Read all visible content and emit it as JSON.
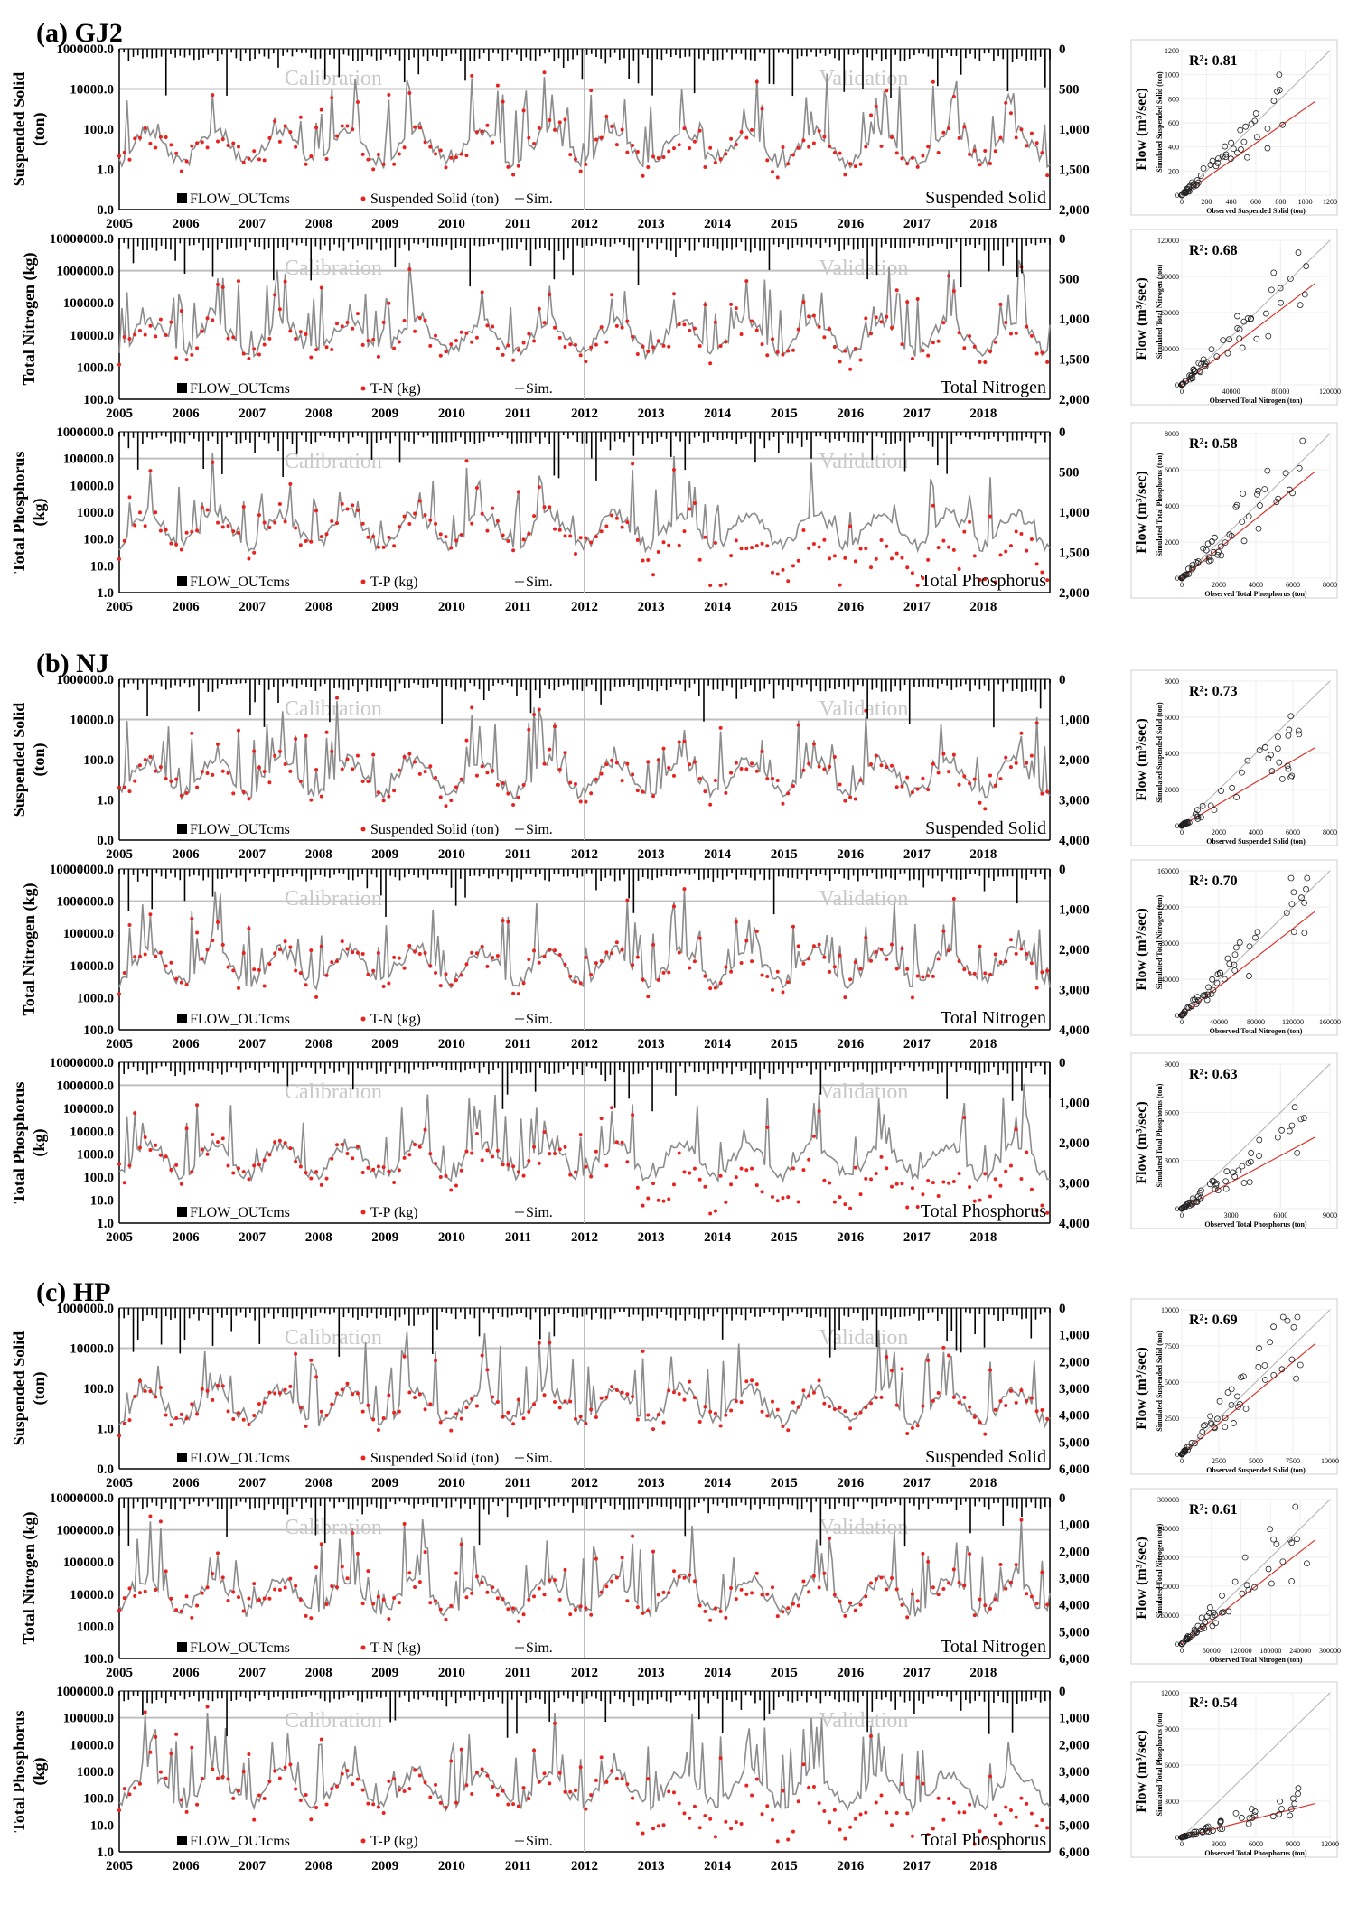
{
  "years": [
    "2005",
    "2006",
    "2007",
    "2008",
    "2009",
    "2010",
    "2011",
    "2012",
    "2013",
    "2014",
    "2015",
    "2016",
    "2017",
    "2018"
  ],
  "period_labels": {
    "calibration": "Calibration",
    "validation": "Validation"
  },
  "legend": {
    "flow": "FLOW_OUTcms",
    "sim": "Sim."
  },
  "scatter_ylabel": "Flow (m³/sec)",
  "colors": {
    "observed": "#e8231f",
    "simulated": "#8c8c8c",
    "flow": "#000000",
    "divider": "#bfbfbf",
    "regression": "#d9342b",
    "one_to_one": "#b0b0b0",
    "calibration_text": "#c8c8c8"
  },
  "panels": [
    {
      "title": "(a) GJ2",
      "rows": [
        {
          "ylabel": [
            "Suspended Solid",
            "(ton)"
          ],
          "legend_obs": "Suspended Solid (ton)",
          "name": "Suspended Solid",
          "yticks": [
            "1000000.0",
            "10000.0",
            "100.0",
            "1.0",
            "0.0"
          ],
          "flow_ticks": [
            "0",
            "500",
            "1,000",
            "1,500",
            "2,000"
          ],
          "scatter": {
            "r2": "R²: 0.81",
            "max": 1200,
            "xticks": [
              "0",
              "200",
              "400",
              "600",
              "800",
              "1000",
              "1200"
            ],
            "yticks": [
              "0",
              "200",
              "400",
              "600",
              "800",
              "1000",
              "1200"
            ],
            "xlabel": "Observed Suspended Solid (ton)",
            "ylabel": "Simulated Suspended Solid (ton)",
            "slope": 0.72
          }
        },
        {
          "ylabel": [
            "Total Nitrogen (kg)"
          ],
          "legend_obs": "T-N (kg)",
          "name": "Total Nitrogen",
          "yticks": [
            "10000000.0",
            "1000000.0",
            "100000.0",
            "10000.0",
            "1000.0",
            "100.0"
          ],
          "flow_ticks": [
            "0",
            "500",
            "1,000",
            "1,500",
            "2,000"
          ],
          "scatter": {
            "r2": "R²: 0.68",
            "max": 120000,
            "xticks": [
              "0",
              "40000",
              "80000",
              "120000"
            ],
            "yticks": [
              "0",
              "30000",
              "60000",
              "90000",
              "120000"
            ],
            "xlabel": "Observed Total Nitrogen (ton)",
            "ylabel": "Simulated Total Nitrogen (ton)",
            "slope": 0.78
          }
        },
        {
          "ylabel": [
            "Total Phosphorus",
            "(kg)"
          ],
          "legend_obs": "T-P (kg)",
          "name": "Total Phosphorus",
          "yticks": [
            "1000000.0",
            "100000.0",
            "10000.0",
            "1000.0",
            "100.0",
            "10.0",
            "1.0"
          ],
          "flow_ticks": [
            "0",
            "500",
            "1,000",
            "1,500",
            "2,000"
          ],
          "scatter": {
            "r2": "R²: 0.58",
            "max": 8000,
            "xticks": [
              "0",
              "2000",
              "4000",
              "6000",
              "8000"
            ],
            "yticks": [
              "0",
              "2000",
              "4000",
              "6000",
              "8000"
            ],
            "xlabel": "Observed Total Phosphorus (ton)",
            "ylabel": "Simulated Total Phosphorus (ton)",
            "slope": 0.82
          }
        }
      ]
    },
    {
      "title": "(b) NJ",
      "rows": [
        {
          "ylabel": [
            "Suspended Solid",
            "(ton)"
          ],
          "legend_obs": "Suspended Solid (ton)",
          "name": "Suspended Solid",
          "yticks": [
            "1000000.0",
            "10000.0",
            "100.0",
            "1.0",
            "0.0"
          ],
          "flow_ticks": [
            "0",
            "1,000",
            "2,000",
            "3,000",
            "4,000"
          ],
          "scatter": {
            "r2": "R²: 0.73",
            "max": 8000,
            "xticks": [
              "0",
              "2000",
              "4000",
              "6000",
              "8000"
            ],
            "yticks": [
              "0",
              "2000",
              "4000",
              "6000",
              "8000"
            ],
            "xlabel": "Observed Suspended Solid (ton)",
            "ylabel": "Simulated Suspended Solid (ton)",
            "slope": 0.6
          }
        },
        {
          "ylabel": [
            "Total Nitrogen (kg)"
          ],
          "legend_obs": "T-N (kg)",
          "name": "Total Nitrogen",
          "yticks": [
            "10000000.0",
            "1000000.0",
            "100000.0",
            "10000.0",
            "1000.0",
            "100.0"
          ],
          "flow_ticks": [
            "0",
            "1,000",
            "2,000",
            "3,000",
            "4,000"
          ],
          "scatter": {
            "r2": "R²: 0.70",
            "max": 160000,
            "xticks": [
              "0",
              "40000",
              "80000",
              "120000",
              "160000"
            ],
            "yticks": [
              "0",
              "40000",
              "80000",
              "120000",
              "160000"
            ],
            "xlabel": "Observed Total Nitrogen (ton)",
            "ylabel": "Simulated Total Nitrogen (ton)",
            "slope": 0.8
          }
        },
        {
          "ylabel": [
            "Total Phosphorus",
            "(kg)"
          ],
          "legend_obs": "T-P (kg)",
          "name": "Total Phosphorus",
          "yticks": [
            "10000000.0",
            "1000000.0",
            "100000.0",
            "10000.0",
            "1000.0",
            "100.0",
            "10.0",
            "1.0"
          ],
          "flow_ticks": [
            "0",
            "1,000",
            "2,000",
            "3,000",
            "4,000"
          ],
          "scatter": {
            "r2": "R²: 0.63",
            "max": 9000,
            "xticks": [
              "0",
              "3000",
              "6000",
              "9000"
            ],
            "yticks": [
              "0",
              "3000",
              "6000",
              "9000"
            ],
            "xlabel": "Observed Total Phosphorus (ton)",
            "ylabel": "Simulated Total Phosphorus (ton)",
            "slope": 0.55
          }
        }
      ]
    },
    {
      "title": "(c) HP",
      "rows": [
        {
          "ylabel": [
            "Suspended Solid",
            "(ton)"
          ],
          "legend_obs": "Suspended Solid (ton)",
          "name": "Suspended Solid",
          "yticks": [
            "1000000.0",
            "10000.0",
            "100.0",
            "1.0",
            "0.0"
          ],
          "flow_ticks": [
            "0",
            "1,000",
            "2,000",
            "3,000",
            "4,000",
            "5,000",
            "6,000"
          ],
          "scatter": {
            "r2": "R²: 0.69",
            "max": 10000,
            "xticks": [
              "0",
              "2500",
              "5000",
              "7500",
              "10000"
            ],
            "yticks": [
              "0",
              "2500",
              "5000",
              "7500",
              "10000"
            ],
            "xlabel": "Observed Suspended Solid (ton)",
            "ylabel": "Simulated Suspended Solid (ton)",
            "slope": 0.85
          }
        },
        {
          "ylabel": [
            "Total Nitrogen (kg)"
          ],
          "legend_obs": "T-N (kg)",
          "name": "Total Nitrogen",
          "yticks": [
            "10000000.0",
            "1000000.0",
            "100000.0",
            "10000.0",
            "1000.0",
            "100.0"
          ],
          "flow_ticks": [
            "0",
            "1,000",
            "2,000",
            "3,000",
            "4,000",
            "5,000",
            "6,000"
          ],
          "scatter": {
            "r2": "R²: 0.61",
            "max": 300000,
            "xticks": [
              "0",
              "60000",
              "120000",
              "180000",
              "240000",
              "300000"
            ],
            "yticks": [
              "0",
              "60000",
              "120000",
              "180000",
              "240000",
              "300000"
            ],
            "xlabel": "Observed Total Nitrogen (ton)",
            "ylabel": "Simulated Total Nitrogen (ton)",
            "slope": 0.8
          }
        },
        {
          "ylabel": [
            "Total Phosphorus",
            "(kg)"
          ],
          "legend_obs": "T-P (kg)",
          "name": "Total Phosphorus",
          "yticks": [
            "1000000.0",
            "100000.0",
            "10000.0",
            "1000.0",
            "100.0",
            "10.0",
            "1.0"
          ],
          "flow_ticks": [
            "0",
            "1,000",
            "2,000",
            "3,000",
            "4,000",
            "5,000",
            "6,000"
          ],
          "scatter": {
            "r2": "R²: 0.54",
            "max": 12000,
            "xticks": [
              "0",
              "3000",
              "6000",
              "9000",
              "12000"
            ],
            "yticks": [
              "0",
              "3000",
              "6000",
              "9000",
              "12000"
            ],
            "xlabel": "Observed Total Phosphorus (ton)",
            "ylabel": "Simulated Total Phosphorus (ton)",
            "slope": 0.26
          }
        }
      ]
    }
  ],
  "chart_data": [
    {
      "type": "line",
      "title": "(a) GJ2",
      "series": [
        {
          "name": "FLOW_OUTcms"
        },
        {
          "name": "Suspended Solid (ton)"
        },
        {
          "name": "Sim."
        }
      ],
      "xlim": [
        2005,
        2019
      ],
      "note_periods": [
        "Calibration",
        "Validation"
      ],
      "split_year": 2012
    },
    {
      "type": "scatter",
      "title": "(a) GJ2 Suspended Solid",
      "r2": 0.81,
      "xlim": [
        0,
        1200
      ],
      "ylim": [
        0,
        1200
      ]
    },
    {
      "type": "scatter",
      "title": "(a) GJ2 Total Nitrogen",
      "r2": 0.68,
      "xlim": [
        0,
        120000
      ],
      "ylim": [
        0,
        120000
      ]
    },
    {
      "type": "scatter",
      "title": "(a) GJ2 Total Phosphorus",
      "r2": 0.58,
      "xlim": [
        0,
        8000
      ],
      "ylim": [
        0,
        8000
      ]
    },
    {
      "type": "scatter",
      "title": "(b) NJ Suspended Solid",
      "r2": 0.73,
      "xlim": [
        0,
        8000
      ],
      "ylim": [
        0,
        8000
      ]
    },
    {
      "type": "scatter",
      "title": "(b) NJ Total Nitrogen",
      "r2": 0.7,
      "xlim": [
        0,
        160000
      ],
      "ylim": [
        0,
        160000
      ]
    },
    {
      "type": "scatter",
      "title": "(b) NJ Total Phosphorus",
      "r2": 0.63,
      "xlim": [
        0,
        9000
      ],
      "ylim": [
        0,
        9000
      ]
    },
    {
      "type": "scatter",
      "title": "(c) HP Suspended Solid",
      "r2": 0.69,
      "xlim": [
        0,
        10000
      ],
      "ylim": [
        0,
        10000
      ]
    },
    {
      "type": "scatter",
      "title": "(c) HP Total Nitrogen",
      "r2": 0.61,
      "xlim": [
        0,
        300000
      ],
      "ylim": [
        0,
        300000
      ]
    },
    {
      "type": "scatter",
      "title": "(c) HP Total Phosphorus",
      "r2": 0.54,
      "xlim": [
        0,
        12000
      ],
      "ylim": [
        0,
        12000
      ]
    }
  ]
}
